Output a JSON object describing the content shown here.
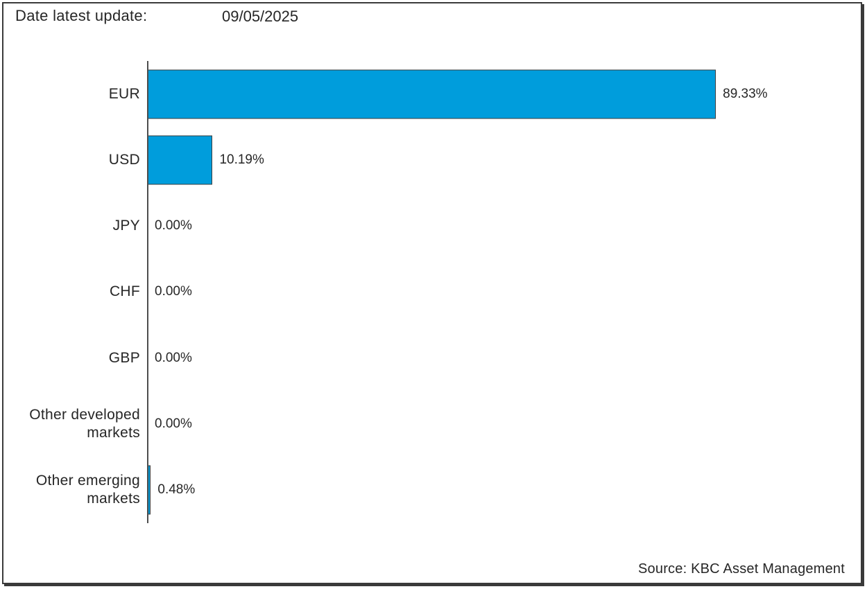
{
  "header": {
    "label": "Date latest update:",
    "value": "09/05/2025"
  },
  "footer": {
    "source": "Source: KBC Asset Management"
  },
  "chart_data": {
    "type": "bar",
    "orientation": "horizontal",
    "title": "",
    "xlabel": "",
    "ylabel": "",
    "categories": [
      "EUR",
      "USD",
      "JPY",
      "CHF",
      "GBP",
      "Other developed markets",
      "Other emerging markets"
    ],
    "values": [
      89.33,
      10.19,
      0.0,
      0.0,
      0.0,
      0.0,
      0.48
    ],
    "value_labels": [
      "89.33%",
      "10.19%",
      "0.00%",
      "0.00%",
      "0.00%",
      "0.00%",
      "0.48%"
    ],
    "xlim": [
      0,
      100
    ],
    "grid": false,
    "legend": false,
    "bar_color": "#009DDC",
    "bar_border_color": "#3d3d3d",
    "axis_color": "#4d4d4d",
    "text_color": "#262626"
  }
}
